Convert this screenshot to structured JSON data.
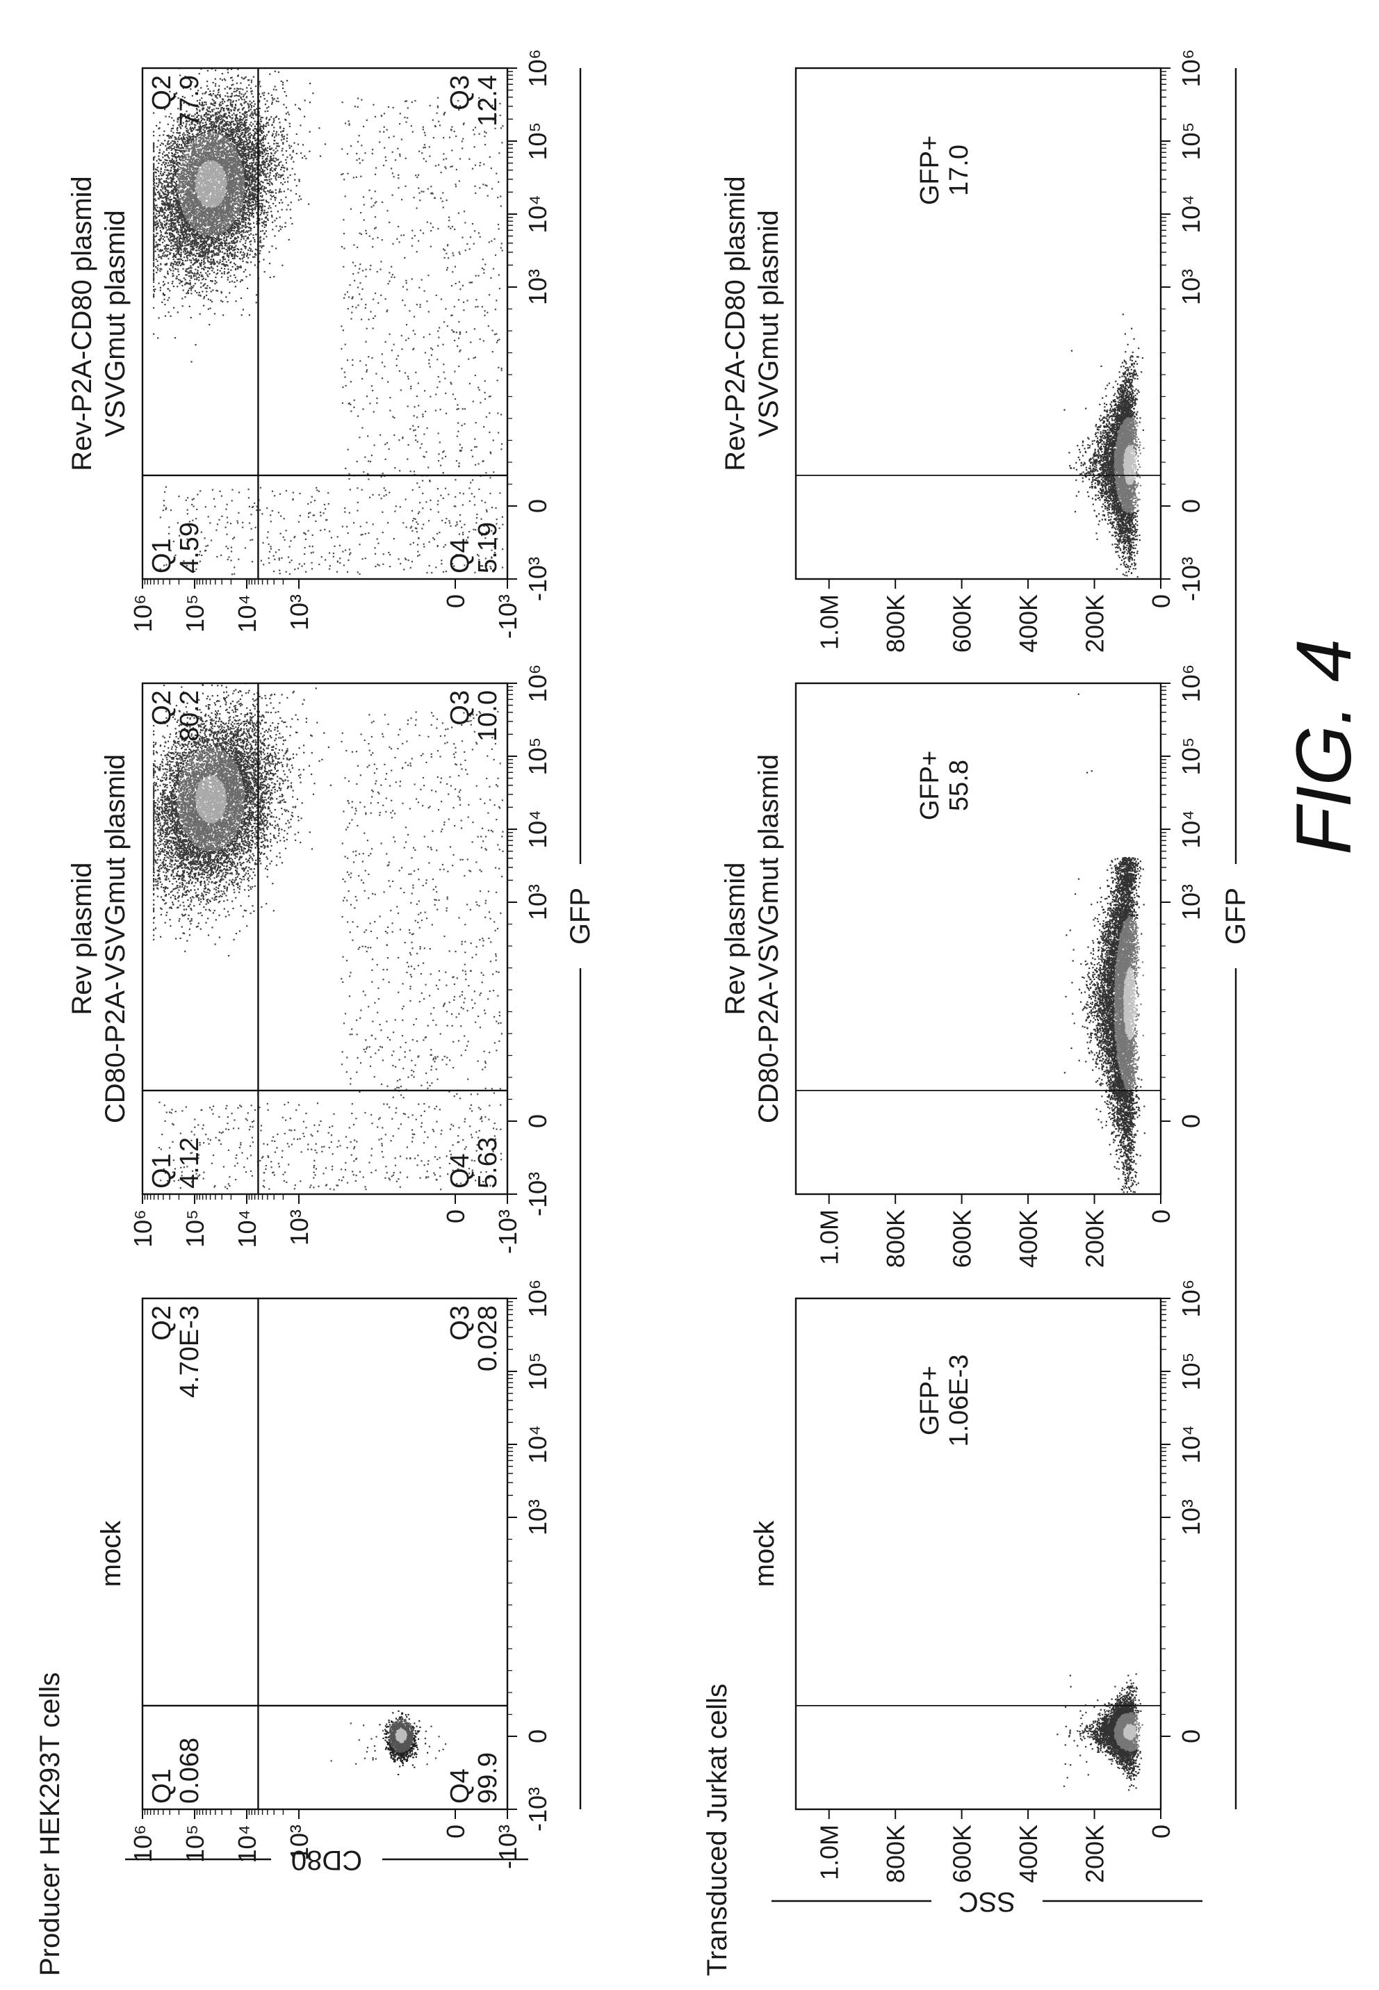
{
  "figure_label": "FIG. 4",
  "rows": [
    {
      "label": "Producer HEK293T cells",
      "y_axis": "CD80",
      "x_axis": "GFP"
    },
    {
      "label": "Transduced Jurkat cells",
      "y_axis": "SSC",
      "x_axis": "GFP"
    }
  ],
  "chart_data": [
    {
      "type": "scatter",
      "panel": "mock",
      "title_lines": [
        "mock"
      ],
      "xlabel": "GFP",
      "ylabel": "CD80",
      "x_scale": "biexponential",
      "y_scale": "biexponential",
      "x_ticks": [
        "-10³",
        "0",
        "10³",
        "10⁴",
        "10⁵",
        "10⁶"
      ],
      "y_ticks": [
        "-10³",
        "0",
        "10³",
        "10⁴",
        "10⁵",
        "10⁶"
      ],
      "gates": {
        "x": 400,
        "y": 2000
      },
      "quadrants": [
        {
          "id": "Q1",
          "value": "0.068"
        },
        {
          "id": "Q2",
          "value": "4.70E-3"
        },
        {
          "id": "Q3",
          "value": "0.028"
        },
        {
          "id": "Q4",
          "value": "99.9"
        }
      ]
    },
    {
      "type": "scatter",
      "panel": "rev-cd80-vsvg",
      "title_lines": [
        "Rev plasmid",
        "CD80-P2A-VSVGmut plasmid"
      ],
      "xlabel": "GFP",
      "ylabel": "CD80",
      "x_scale": "biexponential",
      "y_scale": "biexponential",
      "x_ticks": [
        "-10³",
        "0",
        "10³",
        "10⁴",
        "10⁵",
        "10⁶"
      ],
      "y_ticks": [
        "-10³",
        "0",
        "10³",
        "10⁴",
        "10⁵",
        "10⁶"
      ],
      "gates": {
        "x": 400,
        "y": 2000
      },
      "quadrants": [
        {
          "id": "Q1",
          "value": "4.12"
        },
        {
          "id": "Q2",
          "value": "80.2"
        },
        {
          "id": "Q3",
          "value": "10.0"
        },
        {
          "id": "Q4",
          "value": "5.63"
        }
      ]
    },
    {
      "type": "scatter",
      "panel": "rev-p2a-cd80",
      "title_lines": [
        "Rev-P2A-CD80 plasmid",
        "VSVGmut plasmid"
      ],
      "xlabel": "GFP",
      "ylabel": "CD80",
      "x_scale": "biexponential",
      "y_scale": "biexponential",
      "x_ticks": [
        "-10³",
        "0",
        "10³",
        "10⁴",
        "10⁵",
        "10⁶"
      ],
      "y_ticks": [
        "-10³",
        "0",
        "10³",
        "10⁴",
        "10⁵",
        "10⁶"
      ],
      "gates": {
        "x": 400,
        "y": 2000
      },
      "quadrants": [
        {
          "id": "Q1",
          "value": "4.59"
        },
        {
          "id": "Q2",
          "value": "77.9"
        },
        {
          "id": "Q3",
          "value": "12.4"
        },
        {
          "id": "Q4",
          "value": "5.19"
        }
      ]
    },
    {
      "type": "scatter",
      "panel": "jurkat-mock",
      "title_lines": [
        "mock"
      ],
      "xlabel": "GFP",
      "ylabel": "SSC",
      "x_scale": "biexponential",
      "y_scale": "linear",
      "x_ticks": [
        "0",
        "10³",
        "10⁴",
        "10⁵",
        "10⁶"
      ],
      "y_ticks": [
        "0",
        "200K",
        "400K",
        "600K",
        "800K",
        "1.0M"
      ],
      "gate_x": 400,
      "gate": {
        "name": "GFP+",
        "value": "1.06E-3"
      }
    },
    {
      "type": "scatter",
      "panel": "jurkat-rev-cd80-vsvg",
      "title_lines": [
        "Rev plasmid",
        "CD80-P2A-VSVGmut plasmid"
      ],
      "xlabel": "GFP",
      "ylabel": "SSC",
      "x_scale": "biexponential",
      "y_scale": "linear",
      "x_ticks": [
        "0",
        "10³",
        "10⁴",
        "10⁵",
        "10⁶"
      ],
      "y_ticks": [
        "0",
        "200K",
        "400K",
        "600K",
        "800K",
        "1.0M"
      ],
      "gate_x": 400,
      "gate": {
        "name": "GFP+",
        "value": "55.8"
      }
    },
    {
      "type": "scatter",
      "panel": "jurkat-rev-p2a-cd80",
      "title_lines": [
        "Rev-P2A-CD80 plasmid",
        "VSVGmut plasmid"
      ],
      "xlabel": "GFP",
      "ylabel": "SSC",
      "x_scale": "biexponential",
      "y_scale": "linear",
      "x_ticks": [
        "-10³",
        "0",
        "10³",
        "10⁴",
        "10⁵",
        "10⁶"
      ],
      "y_ticks": [
        "0",
        "200K",
        "400K",
        "600K",
        "800K",
        "1.0M"
      ],
      "gate_x": 400,
      "gate": {
        "name": "GFP+",
        "value": "17.0"
      }
    }
  ]
}
